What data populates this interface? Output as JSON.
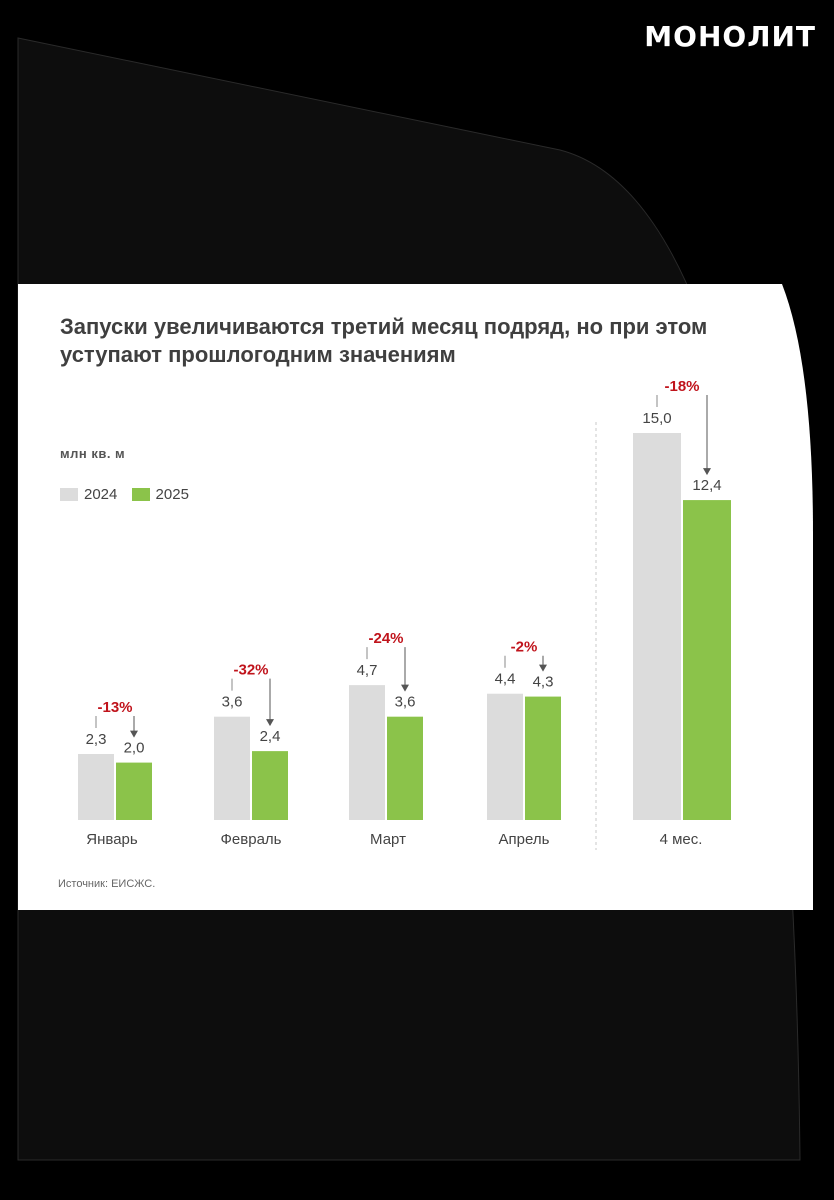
{
  "brand": {
    "logo_text": "МОНОЛИТ"
  },
  "chart_data": {
    "type": "bar",
    "title": "Запуски увеличиваются третий месяц подряд, но при этом уступают прошлогодним значениям",
    "ylabel": "млн кв. м",
    "categories": [
      "Январь",
      "Февраль",
      "Март",
      "Апрель",
      "4 мес."
    ],
    "series": [
      {
        "name": "2024",
        "values": [
          2.3,
          3.6,
          4.7,
          4.4,
          15.0
        ],
        "labels": [
          "2,3",
          "3,6",
          "4,7",
          "4,4",
          "15,0"
        ],
        "color": "#dcdcdc"
      },
      {
        "name": "2025",
        "values": [
          2.0,
          2.4,
          3.6,
          4.3,
          12.4
        ],
        "labels": [
          "2,0",
          "2,4",
          "3,6",
          "4,3",
          "12,4"
        ],
        "color": "#8bc34a"
      }
    ],
    "changes": [
      "-13%",
      "-32%",
      "-24%",
      "-2%",
      "-18%"
    ],
    "change_color": "#c0141c",
    "source": "Источник: ЕИСЖС."
  }
}
